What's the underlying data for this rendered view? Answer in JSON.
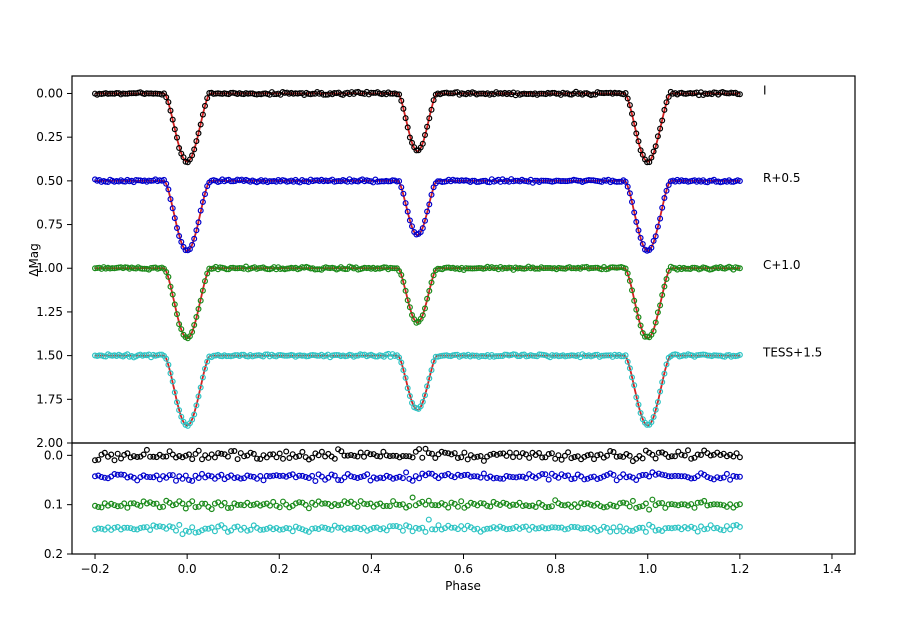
{
  "chart_data": {
    "type": "scatter",
    "xlabel": "Phase",
    "ylabel": "ΔMag",
    "xlim": [
      -0.25,
      1.45
    ],
    "x_ticks": [
      "−0.2",
      "0.0",
      "0.2",
      "0.4",
      "0.6",
      "0.8",
      "1.0",
      "1.2",
      "1.4"
    ],
    "x_tick_values": [
      -0.2,
      0.0,
      0.2,
      0.4,
      0.6,
      0.8,
      1.0,
      1.2,
      1.4
    ],
    "top_panel": {
      "ylim": [
        2.0,
        -0.1
      ],
      "y_ticks": [
        "0.00",
        "0.25",
        "0.50",
        "0.75",
        "1.00",
        "1.25",
        "1.50",
        "1.75",
        "2.00"
      ],
      "y_tick_values": [
        0.0,
        0.25,
        0.5,
        0.75,
        1.0,
        1.25,
        1.5,
        1.75,
        2.0
      ]
    },
    "bottom_panel": {
      "ylim": [
        0.2,
        -0.025
      ],
      "y_ticks": [
        "0.0",
        "0.1",
        "0.2"
      ],
      "y_tick_values": [
        0.0,
        0.1,
        0.2
      ]
    },
    "phase_range": [
      -0.2,
      1.2
    ],
    "series": [
      {
        "name": "I",
        "label": "I",
        "offset": 0.0,
        "primary_depth": 0.39,
        "secondary_depth": 0.33,
        "color": "#000000",
        "residual_offset": 0.0,
        "residual_scatter": 0.008
      },
      {
        "name": "R",
        "label": "R+0.5",
        "offset": 0.5,
        "primary_depth": 0.4,
        "secondary_depth": 0.31,
        "color": "#0000cc",
        "residual_offset": 0.043,
        "residual_scatter": 0.006
      },
      {
        "name": "C",
        "label": "C+1.0",
        "offset": 1.0,
        "primary_depth": 0.4,
        "secondary_depth": 0.31,
        "color": "#1a8a1a",
        "residual_offset": 0.1,
        "residual_scatter": 0.006
      },
      {
        "name": "TESS",
        "label": "TESS+1.5",
        "offset": 1.5,
        "primary_depth": 0.4,
        "secondary_depth": 0.31,
        "color": "#2ec4c4",
        "residual_offset": 0.148,
        "residual_scatter": 0.005
      }
    ],
    "fit_color": "#d62020",
    "eclipse_width": 0.05
  }
}
